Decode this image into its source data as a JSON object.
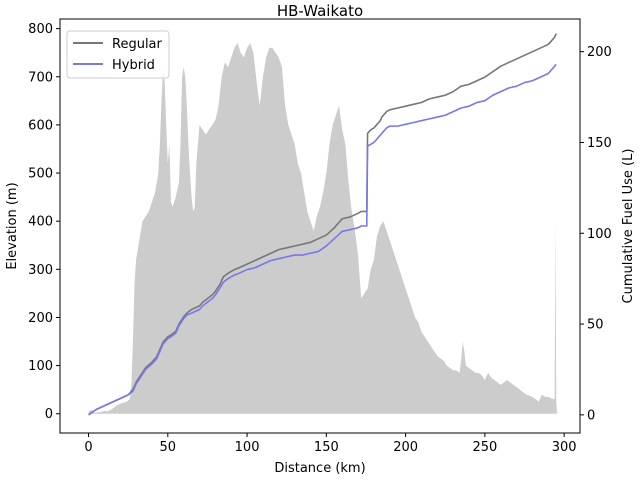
{
  "chart_data": {
    "type": "line",
    "title": "HB-Waikato",
    "xlabel": "Distance (km)",
    "ylabel_left": "Elevation (m)",
    "ylabel_right": "Cumulative Fuel Use (L)",
    "xlim": [
      -18,
      310
    ],
    "ylim_left": [
      -40,
      820
    ],
    "ylim_right": [
      -10,
      218
    ],
    "xticks": [
      0,
      50,
      100,
      150,
      200,
      250,
      300
    ],
    "yticks_left": [
      0,
      100,
      200,
      300,
      400,
      500,
      600,
      700,
      800
    ],
    "yticks_right": [
      0,
      50,
      100,
      150,
      200
    ],
    "legend_position": "top-left",
    "elevation": {
      "color": "#cccccc",
      "x": [
        0,
        2,
        4,
        6,
        8,
        10,
        12,
        15,
        18,
        21,
        24,
        26,
        27,
        28,
        29,
        30,
        32,
        34,
        36,
        38,
        40,
        42,
        44,
        45,
        46,
        47,
        48,
        49,
        50,
        51,
        52,
        53,
        55,
        57,
        58,
        59,
        60,
        61,
        62,
        63,
        64,
        65,
        66,
        67,
        68,
        70,
        72,
        74,
        76,
        78,
        80,
        82,
        84,
        86,
        88,
        90,
        92,
        94,
        96,
        98,
        100,
        102,
        104,
        106,
        108,
        110,
        112,
        114,
        116,
        118,
        120,
        122,
        124,
        126,
        128,
        130,
        132,
        134,
        136,
        138,
        140,
        142,
        144,
        146,
        148,
        150,
        152,
        154,
        156,
        158,
        160,
        162,
        164,
        166,
        168,
        170,
        172,
        174,
        176,
        178,
        180,
        182,
        184,
        186,
        188,
        190,
        192,
        194,
        196,
        198,
        200,
        202,
        204,
        206,
        208,
        210,
        212,
        214,
        216,
        218,
        220,
        222,
        224,
        226,
        228,
        230,
        232,
        234,
        235,
        236,
        237,
        238,
        240,
        242,
        244,
        246,
        248,
        250,
        252,
        254,
        256,
        258,
        260,
        262,
        264,
        266,
        268,
        270,
        272,
        274,
        276,
        278,
        280,
        282,
        284,
        286,
        288,
        290,
        292,
        294,
        294.5,
        295,
        295.5
      ],
      "values": [
        5,
        8,
        2,
        3,
        4,
        6,
        5,
        10,
        18,
        22,
        25,
        30,
        60,
        150,
        270,
        320,
        360,
        400,
        410,
        420,
        440,
        460,
        500,
        560,
        650,
        720,
        690,
        600,
        520,
        560,
        440,
        430,
        450,
        480,
        560,
        700,
        720,
        700,
        640,
        560,
        500,
        450,
        420,
        430,
        520,
        600,
        590,
        580,
        590,
        600,
        610,
        640,
        700,
        730,
        720,
        740,
        760,
        770,
        750,
        740,
        760,
        770,
        750,
        690,
        640,
        700,
        740,
        760,
        760,
        750,
        740,
        720,
        640,
        600,
        580,
        560,
        520,
        500,
        460,
        420,
        400,
        380,
        410,
        430,
        460,
        500,
        560,
        600,
        620,
        640,
        590,
        560,
        480,
        420,
        380,
        330,
        240,
        250,
        260,
        300,
        320,
        370,
        390,
        400,
        380,
        360,
        340,
        320,
        300,
        280,
        260,
        240,
        220,
        200,
        190,
        170,
        160,
        150,
        140,
        130,
        120,
        115,
        110,
        100,
        95,
        90,
        90,
        85,
        110,
        150,
        130,
        100,
        95,
        90,
        85,
        85,
        80,
        70,
        85,
        75,
        70,
        65,
        60,
        65,
        70,
        65,
        60,
        55,
        50,
        45,
        40,
        38,
        35,
        30,
        25,
        40,
        35,
        35,
        32,
        30,
        400,
        28,
        0
      ]
    },
    "series": [
      {
        "name": "Regular",
        "color": "#777777",
        "x": [
          0,
          5,
          10,
          15,
          20,
          25,
          28,
          30,
          33,
          36,
          40,
          43,
          45,
          47,
          50,
          52,
          55,
          57,
          60,
          62,
          65,
          70,
          72,
          75,
          78,
          80,
          83,
          85,
          88,
          90,
          92,
          95,
          100,
          105,
          110,
          115,
          120,
          125,
          130,
          135,
          140,
          145,
          150,
          155,
          160,
          165,
          170,
          172,
          175,
          175.5,
          176,
          178,
          180,
          182,
          183,
          184,
          185,
          186,
          187,
          188,
          190,
          195,
          200,
          205,
          210,
          215,
          220,
          225,
          230,
          235,
          240,
          245,
          250,
          255,
          260,
          265,
          270,
          275,
          280,
          285,
          290,
          292,
          294,
          295
        ],
        "values": [
          0,
          3,
          5,
          7,
          9,
          11,
          14,
          18,
          22,
          26,
          29,
          32,
          36,
          40,
          43,
          44,
          46,
          50,
          54,
          56,
          58,
          60,
          62,
          64,
          66,
          68,
          72,
          76,
          78,
          79,
          80,
          81,
          83,
          85,
          87,
          89,
          91,
          92,
          93,
          94,
          95,
          97,
          99,
          103,
          108,
          109,
          111,
          112,
          112,
          112,
          155,
          157,
          158,
          160,
          161,
          162,
          164,
          165,
          166,
          167,
          168,
          169,
          170,
          171,
          172,
          174,
          175,
          176,
          178,
          181,
          182,
          184,
          186,
          189,
          192,
          194,
          196,
          198,
          200,
          202,
          204,
          206,
          208,
          210
        ]
      },
      {
        "name": "Hybrid",
        "color": "#7777ee",
        "x": [
          0,
          5,
          10,
          15,
          20,
          25,
          28,
          30,
          33,
          36,
          40,
          43,
          45,
          47,
          50,
          52,
          55,
          57,
          60,
          62,
          65,
          70,
          72,
          75,
          78,
          80,
          83,
          85,
          88,
          90,
          92,
          95,
          100,
          105,
          110,
          115,
          120,
          125,
          130,
          135,
          140,
          145,
          150,
          155,
          160,
          165,
          170,
          172,
          175,
          175.5,
          176,
          178,
          180,
          182,
          183,
          184,
          185,
          186,
          187,
          188,
          190,
          195,
          200,
          205,
          210,
          215,
          220,
          225,
          230,
          235,
          240,
          245,
          250,
          255,
          260,
          265,
          270,
          275,
          280,
          285,
          290,
          292,
          294,
          295
        ],
        "values": [
          0,
          3,
          5,
          7,
          9,
          11,
          13,
          17,
          21,
          25,
          28,
          31,
          35,
          39,
          42,
          43,
          45,
          49,
          53,
          55,
          56,
          58,
          60,
          62,
          64,
          66,
          70,
          73,
          75,
          76,
          77,
          78,
          80,
          81,
          83,
          85,
          86,
          87,
          88,
          88,
          89,
          90,
          93,
          97,
          101,
          102,
          103,
          104,
          104,
          104,
          148,
          149,
          150,
          152,
          153,
          154,
          155,
          156,
          157,
          158,
          159,
          159,
          160,
          161,
          162,
          163,
          164,
          165,
          167,
          169,
          170,
          172,
          173,
          176,
          178,
          180,
          181,
          183,
          184,
          186,
          188,
          190,
          192,
          193
        ]
      }
    ]
  }
}
